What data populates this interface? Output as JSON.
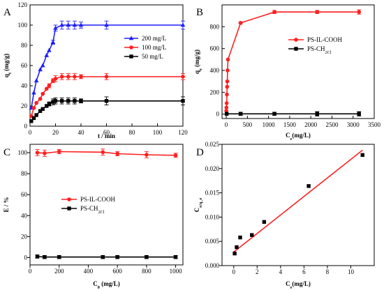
{
  "chart_data": [
    {
      "panel": "A",
      "type": "line",
      "xlabel": "t / min",
      "ylabel": "q_t (mg/g)",
      "xlim": [
        0,
        120
      ],
      "ylim": [
        0,
        120
      ],
      "xticks": [
        0,
        20,
        40,
        60,
        80,
        100,
        120
      ],
      "yticks": [
        0,
        20,
        40,
        60,
        80,
        100,
        120
      ],
      "legend_position": "center-right",
      "series": [
        {
          "name": "200 mg/L",
          "color": "#1f1fff",
          "marker": "triangle",
          "x": [
            1,
            3,
            5,
            8,
            10,
            13,
            15,
            18,
            20,
            25,
            30,
            35,
            40,
            60,
            120
          ],
          "y": [
            18,
            33,
            45,
            56,
            60,
            70,
            75,
            83,
            97,
            100,
            100,
            100,
            100,
            100,
            100
          ],
          "err": [
            0,
            0,
            0,
            0,
            0,
            0,
            0,
            2,
            3,
            4,
            4,
            4,
            3,
            4,
            4
          ]
        },
        {
          "name": "100 mg/L",
          "color": "#ff1f1f",
          "marker": "circle",
          "x": [
            1,
            3,
            5,
            8,
            10,
            13,
            15,
            18,
            20,
            25,
            30,
            35,
            40,
            60,
            120
          ],
          "y": [
            10,
            18,
            23,
            27,
            32,
            37,
            40,
            45,
            47,
            49,
            49,
            49,
            49,
            49,
            49
          ],
          "err": [
            0,
            0,
            0,
            0,
            0,
            0,
            2,
            2,
            3,
            3,
            3,
            3,
            2,
            3,
            3
          ]
        },
        {
          "name": "50 mg/L",
          "color": "#000000",
          "marker": "square",
          "x": [
            1,
            3,
            5,
            8,
            10,
            13,
            15,
            18,
            20,
            25,
            30,
            35,
            40,
            60,
            120
          ],
          "y": [
            5,
            8,
            11,
            15,
            17,
            20,
            22,
            24,
            25,
            25,
            25,
            25,
            25,
            25,
            25
          ],
          "err": [
            0,
            0,
            0,
            0,
            0,
            0,
            2,
            3,
            3,
            3,
            3,
            3,
            2,
            4,
            4
          ]
        }
      ]
    },
    {
      "panel": "B",
      "type": "line",
      "xlabel": "C_e(mg/L)",
      "ylabel": "q_e (mg/g)",
      "xlim": [
        -100,
        3500
      ],
      "ylim": [
        -40,
        1000
      ],
      "xticks": [
        0,
        500,
        1000,
        1500,
        2000,
        2500,
        3000,
        3500
      ],
      "yticks": [
        0,
        200,
        400,
        600,
        800
      ],
      "legend_position": "center-right",
      "series": [
        {
          "name": "PS-IL-COOH",
          "color": "#ff1f1f",
          "marker": "circle",
          "x": [
            2,
            5,
            10,
            15,
            20,
            25,
            30,
            40,
            340,
            1140,
            2150,
            3140
          ],
          "y": [
            30,
            60,
            100,
            180,
            250,
            300,
            400,
            500,
            835,
            935,
            935,
            935
          ],
          "err": [
            0,
            0,
            0,
            0,
            0,
            0,
            0,
            0,
            8,
            15,
            15,
            20
          ]
        },
        {
          "name": "PS-CH_2Cl",
          "color": "#000000",
          "marker": "square",
          "x": [
            10,
            340,
            1140,
            2150,
            3140
          ],
          "y": [
            3,
            3,
            3,
            3,
            3
          ],
          "err": [
            0,
            15,
            15,
            20,
            20
          ]
        }
      ]
    },
    {
      "panel": "C",
      "type": "line",
      "xlabel": "C_0 (mg/L)",
      "ylabel": "E / %",
      "xlim": [
        0,
        1050
      ],
      "ylim": [
        -7,
        108
      ],
      "xticks": [
        0,
        200,
        400,
        600,
        800,
        1000
      ],
      "yticks": [
        0,
        20,
        40,
        60,
        80,
        100
      ],
      "legend_position": "center",
      "series": [
        {
          "name": "PS-IL-COOH",
          "color": "#ff1f1f",
          "marker": "circle",
          "x": [
            50,
            100,
            200,
            500,
            600,
            800,
            1000
          ],
          "y": [
            100,
            99.5,
            101,
            100.5,
            99,
            98,
            97.5
          ],
          "err": [
            3,
            3,
            2,
            3,
            2,
            3,
            2
          ]
        },
        {
          "name": "PS-CH_2Cl",
          "color": "#000000",
          "marker": "square",
          "x": [
            50,
            100,
            200,
            500,
            600,
            800,
            1000
          ],
          "y": [
            1,
            0.5,
            0.5,
            0.5,
            0.5,
            0.5,
            0.5
          ],
          "err": [
            1.5,
            1.5,
            1.5,
            1.5,
            1.5,
            1.5,
            1.5
          ]
        }
      ]
    },
    {
      "panel": "D",
      "type": "scatter",
      "xlabel": "C_e(mg/L)",
      "ylabel": "C_e/q_e",
      "xlim": [
        -1,
        12
      ],
      "ylim": [
        0,
        0.025
      ],
      "xticks": [
        0,
        2,
        4,
        6,
        8,
        10
      ],
      "yticks": [
        0.0,
        0.005,
        0.01,
        0.015,
        0.02,
        0.025
      ],
      "series": [
        {
          "name": "",
          "color": "#000000",
          "marker": "square",
          "x": [
            0.08,
            0.25,
            0.55,
            1.55,
            2.6,
            6.4,
            11.0
          ],
          "y": [
            0.0025,
            0.0038,
            0.0058,
            0.0063,
            0.009,
            0.0164,
            0.0228
          ]
        }
      ],
      "fit_line": {
        "color": "#ff1f1f",
        "x": [
          0,
          11
        ],
        "y": [
          0.0028,
          0.0238
        ]
      }
    }
  ]
}
